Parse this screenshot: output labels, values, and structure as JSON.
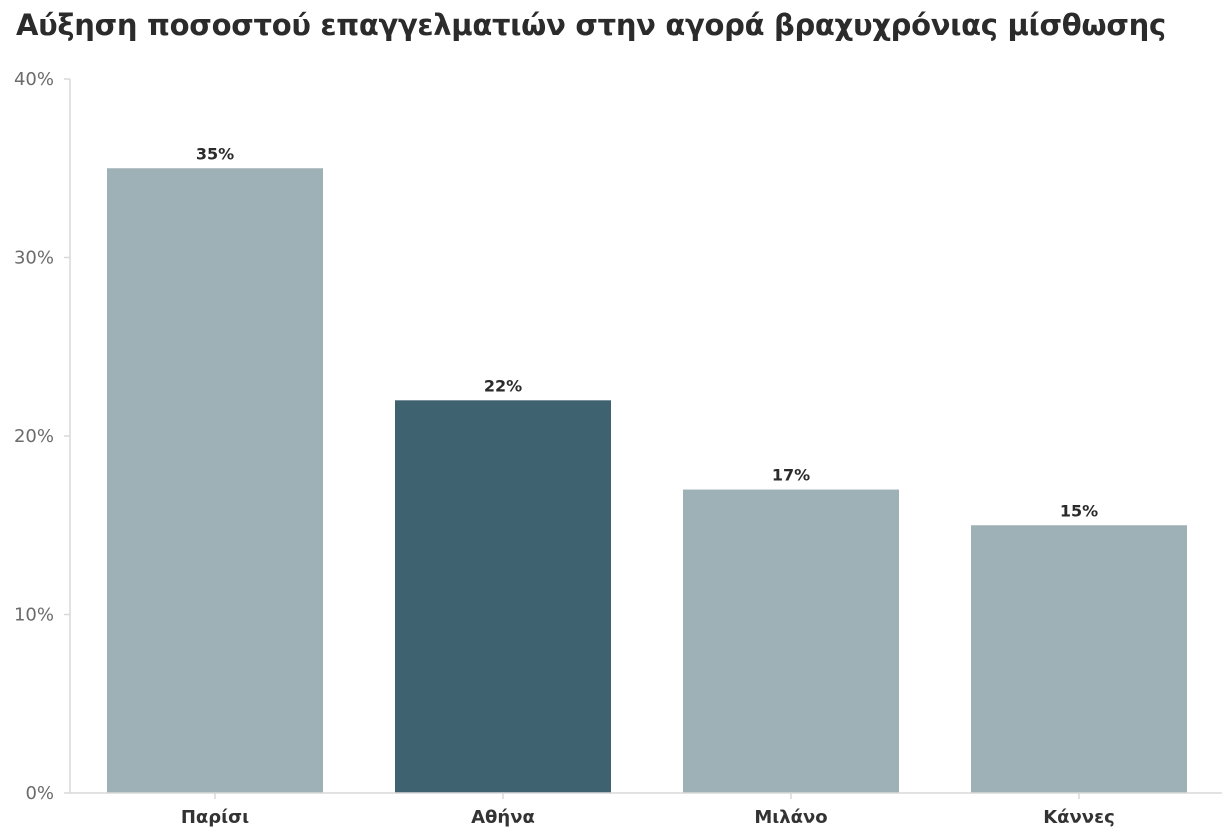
{
  "chart_data": {
    "type": "bar",
    "title": "Αύξηση ποσοστού επαγγελματιών στην αγορά βραχυχρόνιας μίσθωσης",
    "xlabel": "",
    "ylabel": "",
    "categories": [
      "Παρίσι",
      "Αθήνα",
      "Μιλάνο",
      "Κάννες"
    ],
    "values": [
      35,
      22,
      17,
      15
    ],
    "value_labels": [
      "35%",
      "22%",
      "17%",
      "15%"
    ],
    "ylim": [
      0,
      40
    ],
    "y_ticks": [
      0,
      10,
      20,
      30,
      40
    ],
    "y_tick_labels": [
      "0%",
      "10%",
      "20%",
      "30%",
      "40%"
    ],
    "highlight_category": "Αθήνα",
    "colors": {
      "default_bar": "#9eb1b6",
      "highlight_bar": "#3f6270",
      "axis": "#d9d9d9"
    },
    "grid": false,
    "legend": "none"
  }
}
